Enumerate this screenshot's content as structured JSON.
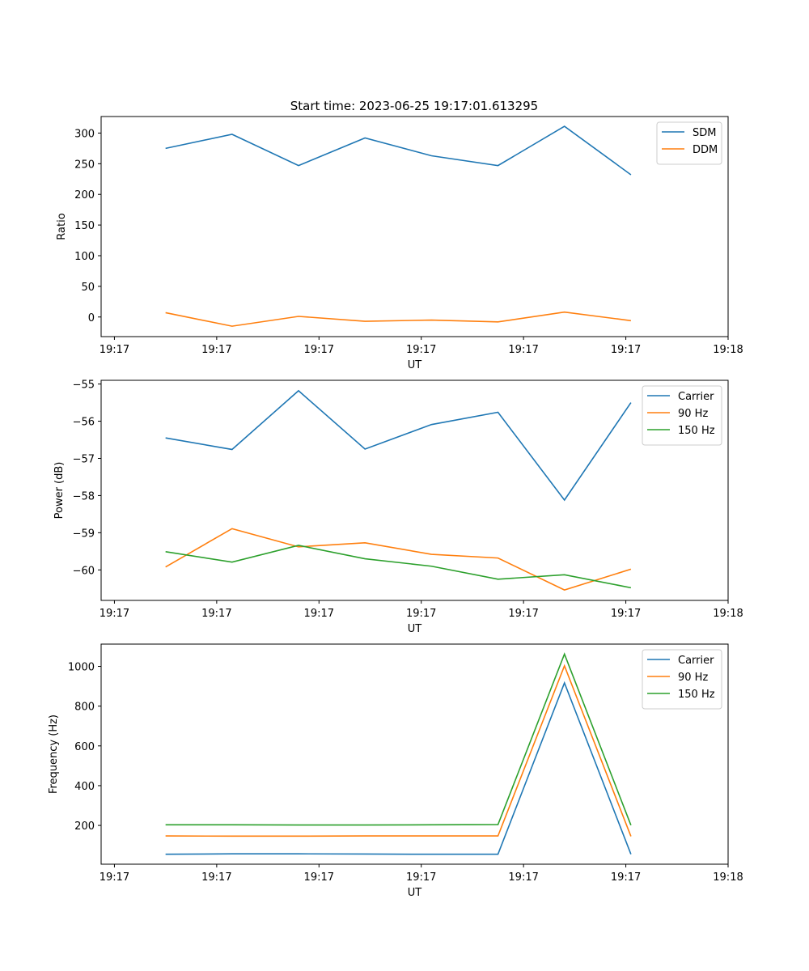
{
  "chart_data": [
    {
      "type": "line",
      "title": "Start time: 2023-06-25 19:17:01.613295",
      "xlabel": "UT",
      "ylabel": "Ratio",
      "x_tick_labels": [
        "19:17",
        "19:17",
        "19:17",
        "19:17",
        "19:17",
        "19:17",
        "19:18"
      ],
      "x": [
        0.5,
        1.15,
        1.8,
        2.45,
        3.1,
        3.75,
        4.4,
        5.05
      ],
      "xlim": [
        -0.13,
        6.0
      ],
      "ylim": [
        -32,
        327
      ],
      "yticks": [
        0,
        50,
        100,
        150,
        200,
        250,
        300
      ],
      "legend": "upper right",
      "series": [
        {
          "name": "SDM",
          "color": "#1f77b4",
          "values": [
            275,
            298,
            247,
            292,
            263,
            247,
            311,
            232
          ]
        },
        {
          "name": "DDM",
          "color": "#ff7f0e",
          "values": [
            7,
            -15,
            1,
            -7,
            -5,
            -8,
            8,
            -6
          ]
        }
      ]
    },
    {
      "type": "line",
      "title": "",
      "xlabel": "UT",
      "ylabel": "Power (dB)",
      "x_tick_labels": [
        "19:17",
        "19:17",
        "19:17",
        "19:17",
        "19:17",
        "19:17",
        "19:18"
      ],
      "x": [
        0.5,
        1.15,
        1.8,
        2.45,
        3.1,
        3.75,
        4.4,
        5.05
      ],
      "xlim": [
        -0.13,
        6.0
      ],
      "ylim": [
        -60.82,
        -54.9
      ],
      "yticks": [
        -60,
        -59,
        -58,
        -57,
        -56,
        -55
      ],
      "legend": "upper right",
      "series": [
        {
          "name": "Carrier",
          "color": "#1f77b4",
          "values": [
            -56.45,
            -56.76,
            -55.18,
            -56.75,
            -56.09,
            -55.76,
            -58.12,
            -55.5
          ]
        },
        {
          "name": "90 Hz",
          "color": "#ff7f0e",
          "values": [
            -59.92,
            -58.89,
            -59.38,
            -59.27,
            -59.58,
            -59.68,
            -60.54,
            -59.98
          ]
        },
        {
          "name": "150 Hz",
          "color": "#2ca02c",
          "values": [
            -59.51,
            -59.79,
            -59.34,
            -59.7,
            -59.9,
            -60.25,
            -60.13,
            -60.48
          ]
        }
      ]
    },
    {
      "type": "line",
      "title": "",
      "xlabel": "UT",
      "ylabel": "Frequency (Hz)",
      "x_tick_labels": [
        "19:17",
        "19:17",
        "19:17",
        "19:17",
        "19:17",
        "19:17",
        "19:18"
      ],
      "x": [
        0.5,
        1.15,
        1.8,
        2.45,
        3.1,
        3.75,
        4.4,
        5.05
      ],
      "xlim": [
        -0.13,
        6.0
      ],
      "ylim": [
        5,
        1112
      ],
      "yticks": [
        200,
        400,
        600,
        800,
        1000
      ],
      "legend": "upper right",
      "series": [
        {
          "name": "Carrier",
          "color": "#1f77b4",
          "values": [
            55,
            57,
            57,
            56,
            55,
            55,
            917,
            55
          ]
        },
        {
          "name": "90 Hz",
          "color": "#ff7f0e",
          "values": [
            147,
            146,
            146,
            147,
            147,
            147,
            1003,
            145
          ]
        },
        {
          "name": "150 Hz",
          "color": "#2ca02c",
          "values": [
            203,
            203,
            202,
            202,
            203,
            204,
            1062,
            201
          ]
        }
      ]
    }
  ]
}
